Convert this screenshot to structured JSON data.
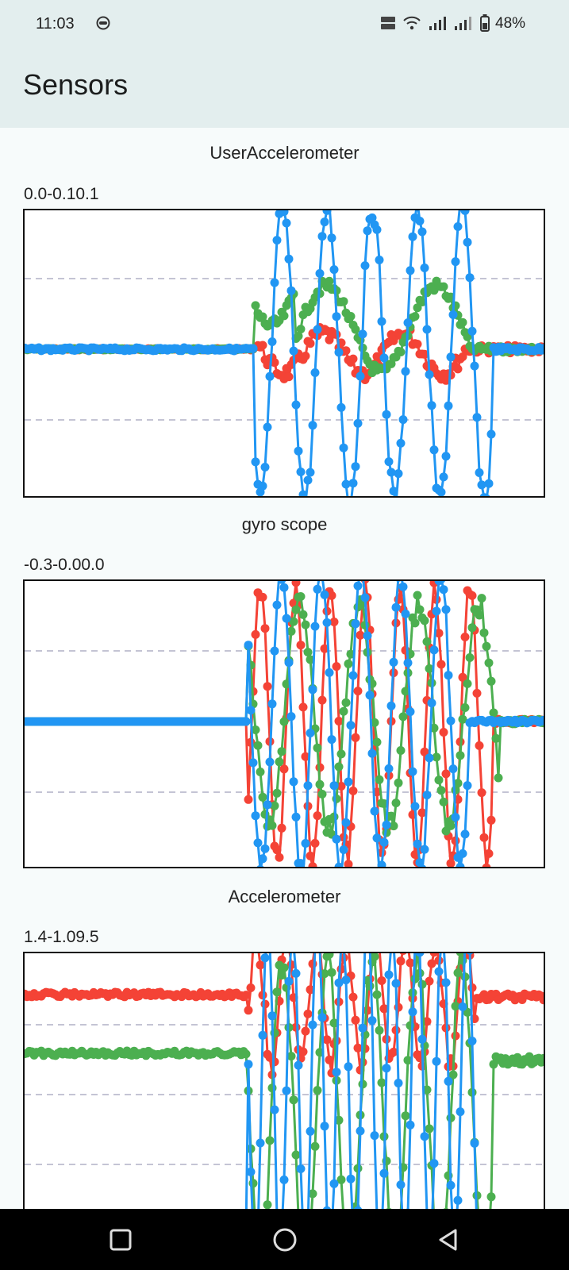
{
  "status_bar": {
    "time": "11:03",
    "battery": "48%",
    "icons": [
      "app-notification-icon",
      "volte-icon",
      "wifi-icon",
      "signal-icon",
      "signal-icon",
      "battery-icon"
    ]
  },
  "app_bar": {
    "title": "Sensors"
  },
  "charts": [
    {
      "title": "UserAccelerometer",
      "range": "0.0-0.10.1"
    },
    {
      "title": "gyro scope",
      "range": "-0.3-0.00.0"
    },
    {
      "title": "Accelerometer",
      "range": "1.4-1.09.5"
    }
  ],
  "chart_data": [
    {
      "type": "scatter",
      "title": "UserAccelerometer",
      "grid": "dashed horizontal",
      "series_colors": [
        "#F44336",
        "#4CAF50",
        "#2196F3"
      ]
    },
    {
      "type": "scatter",
      "title": "gyro scope",
      "grid": "dashed horizontal",
      "series_colors": [
        "#F44336",
        "#4CAF50",
        "#2196F3"
      ]
    },
    {
      "type": "scatter",
      "title": "Accelerometer",
      "grid": "dashed horizontal",
      "series_colors": [
        "#F44336",
        "#4CAF50",
        "#2196F3"
      ]
    }
  ],
  "colors": {
    "red": "#F44336",
    "green": "#4CAF50",
    "blue": "#2196F3",
    "app_bar": "#E3EEEE",
    "background": "#F7FBFB"
  },
  "nav_bar": {
    "icons": [
      "recents-icon",
      "home-icon",
      "back-icon"
    ]
  }
}
